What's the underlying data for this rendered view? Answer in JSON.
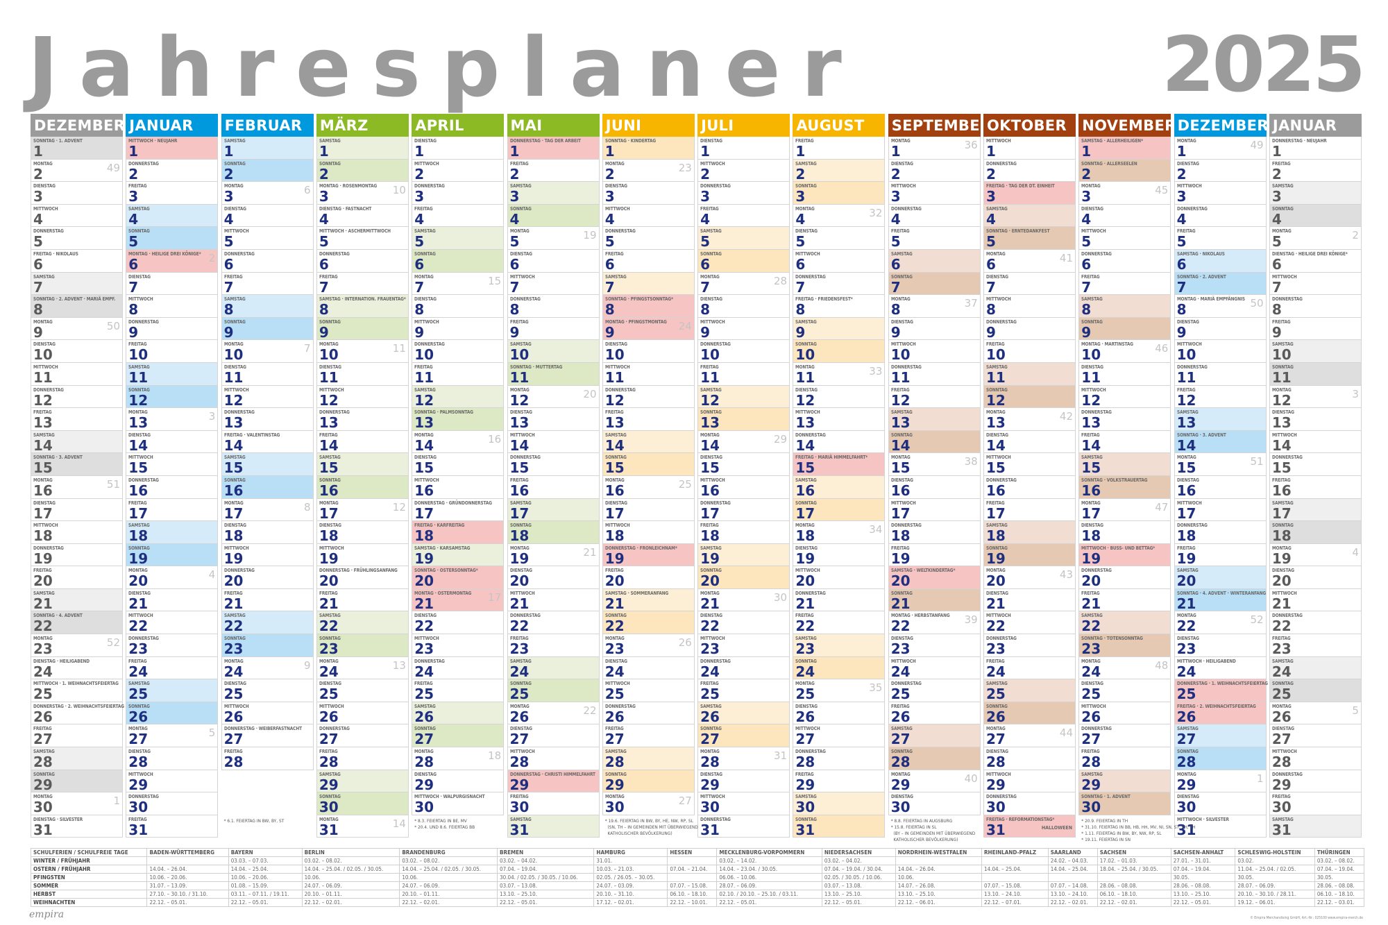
{
  "title": "Jahresplaner",
  "year": "2025",
  "weekday_names": [
    "MONTAG",
    "DIENSTAG",
    "MITTWOCH",
    "DONNERSTAG",
    "FREITAG",
    "SAMSTAG",
    "SONNTAG"
  ],
  "colors": {
    "text_blue": "#1f2f7f",
    "text_grey": "#5a5a5a",
    "holiday_bg": "#f6c4c2",
    "week_number": "#c4c4c4"
  },
  "months": [
    {
      "name": "DEZEMBER",
      "days": 31,
      "first_weekday": 6,
      "head": "#9b9b9b",
      "sat": "#efefef",
      "sun": "#dedede",
      "grey": true,
      "holidays": {
        "1": "1. ADVENT",
        "6": "NIKOLAUS",
        "8": "2. ADVENT · MARIÄ EMPF.",
        "15": "3. ADVENT",
        "22": "4. ADVENT",
        "24": "HEILIGABEND",
        "25": "1. WEIHNACHTSFEIERTAG",
        "26": "2. WEIHNACHTSFEIERTAG",
        "31": "SILVESTER"
      },
      "red": [],
      "kw": {
        "2": "49",
        "9": "50",
        "16": "51",
        "23": "52",
        "30": "1"
      }
    },
    {
      "name": "JANUAR",
      "days": 31,
      "first_weekday": 2,
      "head": "#0099dd",
      "sat": "#d6ebf9",
      "sun": "#b9dff6",
      "holidays": {
        "1": "NEUJAHR",
        "6": "HEILIGE DREI KÖNIGE*"
      },
      "red": [
        1,
        6
      ],
      "kw": {
        "6": "2",
        "13": "3",
        "20": "4",
        "27": "5"
      }
    },
    {
      "name": "FEBRUAR",
      "days": 28,
      "first_weekday": 5,
      "head": "#0099dd",
      "sat": "#d6ebf9",
      "sun": "#b9dff6",
      "holidays": {
        "14": "VALENTINSTAG",
        "27": "WEIBERFASTNACHT"
      },
      "red": [],
      "kw": {
        "3": "6",
        "10": "7",
        "17": "8",
        "24": "9"
      }
    },
    {
      "name": "MÄRZ",
      "days": 31,
      "first_weekday": 5,
      "head": "#8cba25",
      "sat": "#ebf0dc",
      "sun": "#dde8c4",
      "holidays": {
        "3": "ROSENMONTAG",
        "4": "FASTNACHT",
        "5": "ASCHERMITTWOCH",
        "8": "INTERNATION. FRAUENTAG*",
        "20": "FRÜHLINGSANFANG"
      },
      "red": [],
      "kw": {
        "3": "10",
        "10": "11",
        "17": "12",
        "24": "13",
        "31": "14"
      }
    },
    {
      "name": "APRIL",
      "days": 30,
      "first_weekday": 1,
      "head": "#8cba25",
      "sat": "#ebf0dc",
      "sun": "#dde8c4",
      "holidays": {
        "13": "PALMSONNTAG",
        "17": "GRÜNDONNERSTAG",
        "18": "KARFREITAG",
        "19": "KARSAMSTAG",
        "20": "OSTERSONNTAG*",
        "21": "OSTERMONTAG",
        "30": "WALPURGISNACHT"
      },
      "red": [
        18,
        20,
        21
      ],
      "kw": {
        "7": "15",
        "14": "16",
        "21": "17",
        "28": "18"
      }
    },
    {
      "name": "MAI",
      "days": 31,
      "first_weekday": 3,
      "head": "#8cba25",
      "sat": "#ebf0dc",
      "sun": "#dde8c4",
      "holidays": {
        "1": "TAG DER ARBEIT",
        "11": "MUTTERTAG",
        "29": "CHRISTI HIMMELFAHRT"
      },
      "red": [
        1,
        29
      ],
      "kw": {
        "5": "19",
        "12": "20",
        "19": "21",
        "26": "22"
      }
    },
    {
      "name": "JUNI",
      "days": 30,
      "first_weekday": 6,
      "head": "#f7b500",
      "sat": "#fdefd6",
      "sun": "#fde5bd",
      "holidays": {
        "1": "KINDERTAG",
        "8": "PFINGSTSONNTAG*",
        "9": "PFINGSTMONTAG",
        "19": "FRONLEICHNAM*",
        "21": "SOMMERANFANG"
      },
      "red": [
        8,
        9,
        19
      ],
      "kw": {
        "2": "23",
        "9": "24",
        "16": "25",
        "23": "26",
        "30": "27"
      }
    },
    {
      "name": "JULI",
      "days": 31,
      "first_weekday": 1,
      "head": "#f7b500",
      "sat": "#fdefd6",
      "sun": "#fde5bd",
      "holidays": {},
      "red": [],
      "kw": {
        "7": "28",
        "14": "29",
        "21": "30",
        "28": "31"
      }
    },
    {
      "name": "AUGUST",
      "days": 31,
      "first_weekday": 4,
      "head": "#f7b500",
      "sat": "#fdefd6",
      "sun": "#fde5bd",
      "holidays": {
        "8": "FRIEDENSFEST*",
        "15": "MARIÄ HIMMELFAHRT*"
      },
      "red": [
        15
      ],
      "kw": {
        "4": "32",
        "11": "33",
        "18": "34",
        "25": "35"
      }
    },
    {
      "name": "SEPTEMBER",
      "days": 30,
      "first_weekday": 0,
      "head": "#a3400f",
      "sat": "#f1ddd2",
      "sun": "#e6c9b3",
      "holidays": {
        "20": "WELTKINDERTAG*",
        "22": "HERBSTANFANG"
      },
      "red": [
        20
      ],
      "kw": {
        "1": "36",
        "8": "37",
        "15": "38",
        "22": "39",
        "29": "40"
      }
    },
    {
      "name": "OKTOBER",
      "days": 31,
      "first_weekday": 2,
      "head": "#a3400f",
      "sat": "#f1ddd2",
      "sun": "#e6c9b3",
      "holidays": {
        "3": "TAG DER DT. EINHEIT",
        "5": "ERNTEDANKFEST",
        "31": "REFORMATIONSTAG*"
      },
      "red": [
        3,
        31
      ],
      "extra": {
        "31": "HALLOWEEN"
      },
      "kw": {
        "6": "41",
        "13": "42",
        "20": "43",
        "27": "44"
      }
    },
    {
      "name": "NOVEMBER",
      "days": 30,
      "first_weekday": 5,
      "head": "#a3400f",
      "sat": "#f1ddd2",
      "sun": "#e6c9b3",
      "holidays": {
        "1": "ALLERHEILIGEN*",
        "2": "ALLERSEELEN",
        "10": "MARTINSTAG",
        "16": "VOLKSTRAUERTAG",
        "19": "BUSS- UND BETTAG*",
        "23": "TOTENSONNTAG",
        "30": "1. ADVENT"
      },
      "red": [
        1,
        19
      ],
      "kw": {
        "3": "45",
        "10": "46",
        "17": "47",
        "24": "48"
      }
    },
    {
      "name": "DEZEMBER",
      "days": 31,
      "first_weekday": 0,
      "head": "#0099dd",
      "sat": "#d6ebf9",
      "sun": "#b9dff6",
      "holidays": {
        "6": "NIKOLAUS",
        "7": "2. ADVENT",
        "8": "MARIÄ EMPFÄNGNIS",
        "14": "3. ADVENT",
        "21": "4. ADVENT · WINTERANFANG",
        "24": "HEILIGABEND",
        "25": "1. WEIHNACHTSFEIERTAG",
        "26": "2. WEIHNACHTSFEIERTAG",
        "31": "SILVESTER"
      },
      "red": [
        25,
        26
      ],
      "kw": {
        "1": "49",
        "8": "50",
        "15": "51",
        "22": "52",
        "29": "1"
      }
    },
    {
      "name": "JANUAR",
      "days": 31,
      "first_weekday": 3,
      "head": "#9b9b9b",
      "sat": "#efefef",
      "sun": "#dedede",
      "grey": true,
      "holidays": {
        "1": "NEUJAHR",
        "6": "HEILIGE DREI KÖNIGE*"
      },
      "red": [],
      "kw": {
        "5": "2",
        "12": "3",
        "19": "4",
        "26": "5"
      }
    }
  ],
  "notes": [
    {
      "col": 2,
      "row": 31,
      "text": "* 6.1. FEIERTAG IN BW, BY, ST"
    },
    {
      "col": 4,
      "row": 31,
      "text": "* 8.3. FEIERTAG IN BE, MV\n* 20.4. UND 8.6. FEIERTAG BB"
    },
    {
      "col": 6,
      "row": 31,
      "text": "* 19.6. FEIERTAG IN BW, BY, HE, NW, RP, SL\n  (SN, TH – IN GEMEINDEN MIT ÜBERWIEGEND\n  KATHOLISCHER BEVÖLKERUNG)"
    },
    {
      "col": 9,
      "row": 31,
      "text": "* 8.8. FEIERTAG IN AUGSBURG\n* 15.8. FEIERTAG IN SL\n  (BY – IN GEMEINDEN MIT ÜBERWIEGEND\n  KATHOLISCHER BEVÖLKERUNG)"
    },
    {
      "col": 11,
      "row": 31,
      "text": "* 20.9. FEIERTAG IN TH\n* 31.10. FEIERTAG IN BB, HB, HH, MV, NI, SN, ST, SH, TH\n* 1.11. FEIERTAG IN BW, BY, NW, RP, SL\n* 19.11. FEIERTAG IN SN"
    }
  ],
  "school_holidays": {
    "header": [
      "SCHULFERIEN / SCHULFREIE TAGE",
      "BADEN-WÜRTTEMBERG",
      "BAYERN",
      "BERLIN",
      "BRANDENBURG",
      "BREMEN",
      "HAMBURG",
      "HESSEN",
      "MECKLENBURG-VORPOMMERN",
      "NIEDERSACHSEN",
      "NORDRHEIN-WESTFALEN",
      "RHEINLAND-PFALZ",
      "SAARLAND",
      "SACHSEN",
      "SACHSEN-ANHALT",
      "SCHLESWIG-HOLSTEIN",
      "THÜRINGEN"
    ],
    "rows": [
      [
        "WINTER / FRÜHJAHR",
        "",
        "03.03. – 07.03.",
        "03.02. – 08.02.",
        "03.02. – 08.02.",
        "03.02. – 04.02.",
        "31.01.",
        "",
        "03.02. – 14.02.",
        "03.02. – 04.02.",
        "",
        "",
        "24.02. – 04.03.",
        "17.02. – 01.03.",
        "27.01. – 31.01.",
        "03.02.",
        "03.02. – 08.02."
      ],
      [
        "OSTERN / FRÜHJAHR",
        "14.04. – 26.04.",
        "14.04. – 25.04.",
        "14.04. – 25.04. / 02.05. / 30.05.",
        "14.04. – 25.04. / 02.05. / 30.05.",
        "07.04. – 19.04.",
        "10.03. – 21.03.",
        "07.04. – 21.04.",
        "14.04. – 23.04. / 30.05.",
        "07.04. – 19.04. / 30.04.",
        "14.04. – 26.04.",
        "14.04. – 25.04.",
        "14.04. – 25.04.",
        "18.04. – 25.04. / 30.05.",
        "07.04. – 19.04.",
        "11.04. – 25.04. / 02.05.",
        "07.04. – 19.04."
      ],
      [
        "PFINGSTEN",
        "10.06. – 20.06.",
        "10.06. – 20.06.",
        "10.06.",
        "10.06.",
        "30.04. / 02.05. / 30.05. / 10.06.",
        "02.05. / 26.05. – 30.05.",
        "",
        "06.06. – 10.06.",
        "02.05. / 30.05. / 10.06.",
        "10.06.",
        "",
        "",
        "",
        "30.05.",
        "30.05.",
        "30.05."
      ],
      [
        "SOMMER",
        "31.07. – 13.09.",
        "01.08. – 15.09.",
        "24.07. – 06.09.",
        "24.07. – 06.09.",
        "03.07. – 13.08.",
        "24.07. – 03.09.",
        "07.07. – 15.08.",
        "28.07. – 06.09.",
        "03.07. – 13.08.",
        "14.07. – 26.08.",
        "07.07. – 15.08.",
        "07.07. – 14.08.",
        "28.06. – 08.08.",
        "28.06. – 08.08.",
        "28.07. – 06.09.",
        "28.06. – 08.08."
      ],
      [
        "HERBST",
        "27.10. – 30.10. / 31.10.",
        "03.11. – 07.11. / 19.11.",
        "20.10. – 01.11.",
        "20.10. – 01.11.",
        "13.10. – 25.10.",
        "20.10. – 31.10.",
        "06.10. – 18.10.",
        "02.10. / 20.10. – 25.10. / 03.11.",
        "13.10. – 25.10.",
        "13.10. – 25.10.",
        "13.10. – 24.10.",
        "13.10. – 24.10.",
        "06.10. – 18.10.",
        "13.10. – 25.10.",
        "20.10. – 30.10. / 28.11.",
        "06.10. – 18.10."
      ],
      [
        "WEIHNACHTEN",
        "22.12. – 05.01.",
        "22.12. – 05.01.",
        "22.12. – 02.01.",
        "22.12. – 02.01.",
        "22.12. – 05.01.",
        "17.12. – 02.01.",
        "22.12. – 10.01.",
        "22.12. – 05.01.",
        "22.12. – 05.01.",
        "22.12. – 06.01.",
        "22.12. – 07.01.",
        "22.12. – 02.01.",
        "22.12. – 02.01.",
        "22.12. – 05.01.",
        "19.12. – 06.01.",
        "22.12. – 03.01."
      ]
    ]
  },
  "footer": {
    "logo": "empira",
    "copyright": "© Empira Merchandising GmbH, Art.-Nr.: 025100 www.empira-merch.de"
  }
}
